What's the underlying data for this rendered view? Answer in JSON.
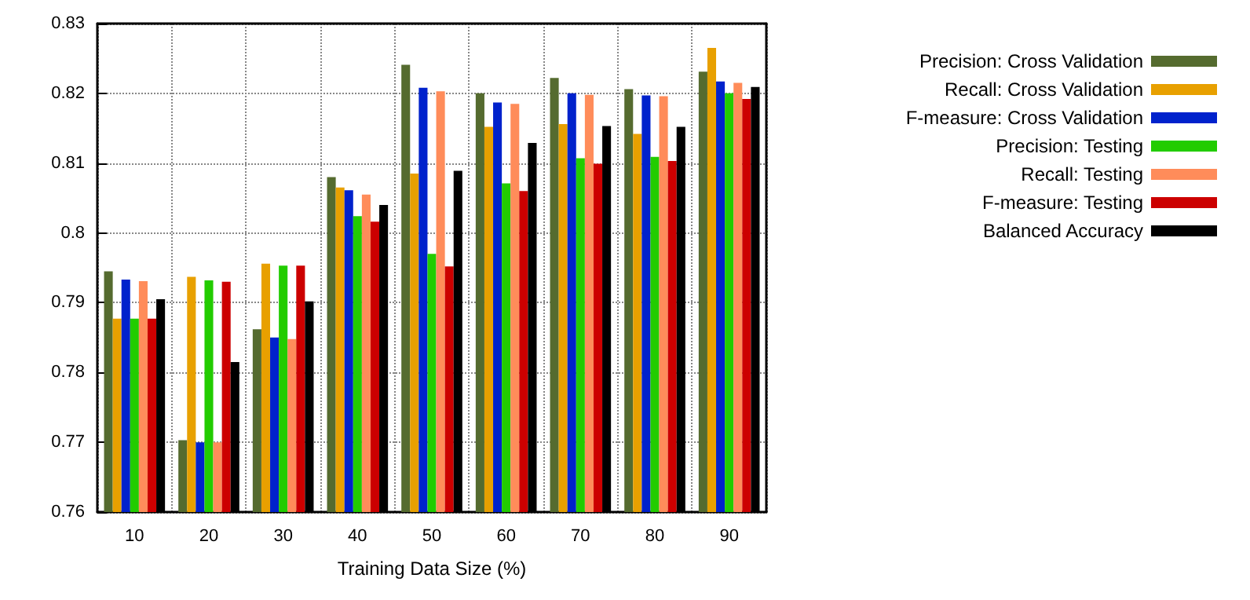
{
  "chart_data": {
    "type": "bar",
    "xlabel": "Training Data Size (%)",
    "categories": [
      "10",
      "20",
      "30",
      "40",
      "50",
      "60",
      "70",
      "80",
      "90"
    ],
    "series": [
      {
        "name": "Precision: Cross Validation",
        "color": "#556b2f",
        "values": [
          0.7945,
          0.7703,
          0.7862,
          0.808,
          0.8241,
          0.82,
          0.8222,
          0.8206,
          0.8231
        ]
      },
      {
        "name": "Recall: Cross Validation",
        "color": "#e8a000",
        "values": [
          0.7877,
          0.7937,
          0.7956,
          0.8065,
          0.8085,
          0.8152,
          0.8156,
          0.8142,
          0.8265
        ]
      },
      {
        "name": "F-measure: Cross Validation",
        "color": "#0022cc",
        "values": [
          0.7933,
          0.77,
          0.785,
          0.8061,
          0.8208,
          0.8187,
          0.82,
          0.8197,
          0.8217
        ]
      },
      {
        "name": "Precision: Testing",
        "color": "#22cc00",
        "values": [
          0.7877,
          0.7932,
          0.7953,
          0.8024,
          0.797,
          0.8071,
          0.8107,
          0.8109,
          0.82
        ]
      },
      {
        "name": "Recall: Testing",
        "color": "#ff8c5a",
        "values": [
          0.7931,
          0.77,
          0.7848,
          0.8055,
          0.8203,
          0.8185,
          0.8198,
          0.8196,
          0.8215
        ]
      },
      {
        "name": "F-measure: Testing",
        "color": "#cc0000",
        "values": [
          0.7877,
          0.793,
          0.7953,
          0.8016,
          0.7952,
          0.806,
          0.8099,
          0.8103,
          0.8192
        ]
      },
      {
        "name": "Balanced Accuracy",
        "color": "#000000",
        "values": [
          0.7905,
          0.7815,
          0.7902,
          0.804,
          0.8089,
          0.8129,
          0.8153,
          0.8152,
          0.8209
        ]
      }
    ],
    "ylim": [
      0.76,
      0.83
    ],
    "yticks": [
      0.76,
      0.77,
      0.78,
      0.79,
      0.8,
      0.81,
      0.82,
      0.83
    ],
    "grid": true,
    "legend": "top right"
  }
}
